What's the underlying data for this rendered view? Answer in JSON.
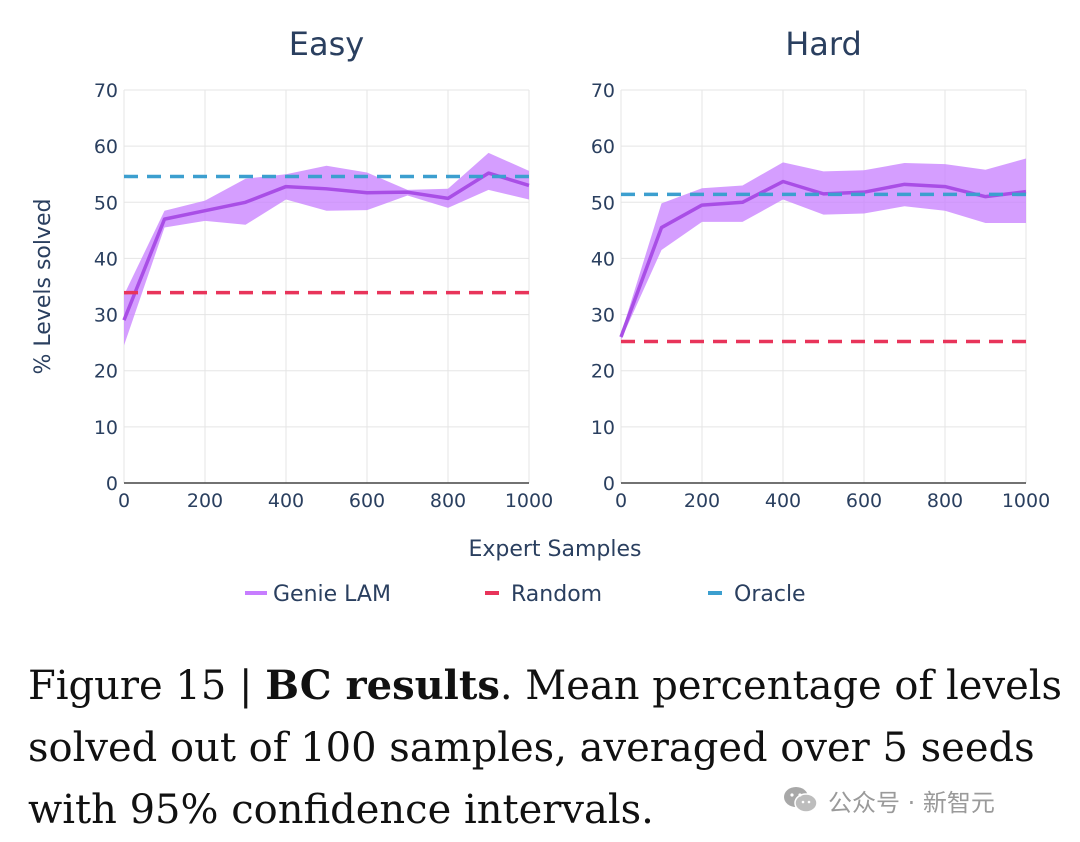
{
  "chart_data": [
    {
      "type": "line",
      "title": "Easy",
      "xlabel": "Expert Samples",
      "ylabel": "% Levels solved",
      "xlim": [
        0,
        1000
      ],
      "ylim": [
        0,
        70
      ],
      "xticks": [
        0,
        200,
        400,
        600,
        800,
        1000
      ],
      "yticks": [
        0,
        10,
        20,
        30,
        40,
        50,
        60,
        70
      ],
      "grid": true,
      "series": [
        {
          "name": "Genie LAM",
          "color": "#c77dff",
          "x": [
            0,
            100,
            200,
            300,
            400,
            500,
            600,
            700,
            800,
            900,
            1000
          ],
          "y": [
            29,
            47,
            48.5,
            50,
            52.8,
            52.4,
            51.7,
            51.8,
            50.7,
            55.2,
            53
          ],
          "lower": [
            24.5,
            45.5,
            46.7,
            46,
            50.5,
            48.5,
            48.6,
            51.2,
            49,
            52.2,
            50.5
          ],
          "upper": [
            33.5,
            48.5,
            50.3,
            54.2,
            55,
            56.5,
            55.3,
            52.2,
            52.4,
            58.8,
            55.6
          ]
        },
        {
          "name": "Random",
          "color": "#e8345a",
          "style": "dash",
          "x": [
            0,
            1000
          ],
          "y": [
            33.9,
            33.9
          ]
        },
        {
          "name": "Oracle",
          "color": "#3c9fcf",
          "style": "dash",
          "x": [
            0,
            1000
          ],
          "y": [
            54.6,
            54.6
          ]
        }
      ]
    },
    {
      "type": "line",
      "title": "Hard",
      "xlabel": "Expert Samples",
      "ylabel": "",
      "xlim": [
        0,
        1000
      ],
      "ylim": [
        0,
        70
      ],
      "xticks": [
        0,
        200,
        400,
        600,
        800,
        1000
      ],
      "yticks": [
        0,
        10,
        20,
        30,
        40,
        50,
        60,
        70
      ],
      "grid": true,
      "series": [
        {
          "name": "Genie LAM",
          "color": "#c77dff",
          "x": [
            0,
            100,
            200,
            300,
            400,
            500,
            600,
            700,
            800,
            900,
            1000
          ],
          "y": [
            26,
            45.5,
            49.5,
            50,
            53.7,
            51.5,
            51.8,
            53.2,
            52.8,
            51,
            51.9
          ],
          "lower": [
            25.5,
            41.5,
            46.5,
            46.5,
            50.5,
            47.8,
            48,
            49.3,
            48.5,
            46.3,
            46.3
          ],
          "upper": [
            26.5,
            49.8,
            52.5,
            53,
            57.1,
            55.5,
            55.7,
            57,
            56.8,
            55.8,
            57.8
          ]
        },
        {
          "name": "Random",
          "color": "#e8345a",
          "style": "dash",
          "x": [
            0,
            1000
          ],
          "y": [
            25.2,
            25.2
          ]
        },
        {
          "name": "Oracle",
          "color": "#3c9fcf",
          "style": "dash",
          "x": [
            0,
            1000
          ],
          "y": [
            51.4,
            51.4
          ]
        }
      ]
    }
  ],
  "legend": {
    "placement": "bottom",
    "items": [
      {
        "label": "Genie LAM",
        "color": "#c77dff",
        "style": "solid"
      },
      {
        "label": "Random",
        "color": "#e8345a",
        "style": "dash"
      },
      {
        "label": "Oracle",
        "color": "#3c9fcf",
        "style": "dash"
      }
    ]
  },
  "caption": {
    "prefix": "Figure 15 | ",
    "bold": "BC results",
    "text": ". Mean percentage of levels solved out of 100 samples, averaged over 5 seeds with 95% confidence intervals."
  },
  "watermark": {
    "text": "公众号 · 新智元",
    "icon": "wechat-icon"
  },
  "colors": {
    "axis_text": "#2a3f5f",
    "grid": "#e5e5e5"
  }
}
